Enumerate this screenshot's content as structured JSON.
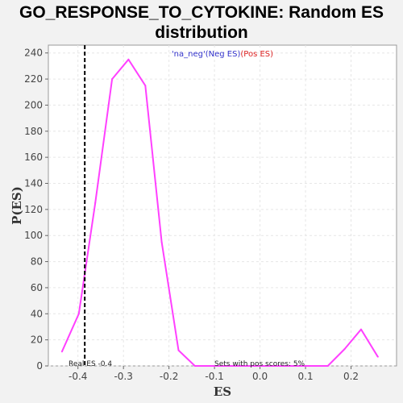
{
  "chart_data": {
    "type": "line",
    "title_line1": "GO_RESPONSE_TO_CYTOKINE: Random ES",
    "title_line2": "distribution",
    "xlabel": "ES",
    "ylabel": "P(ES)",
    "xlim": [
      -0.465,
      0.3
    ],
    "ylim": [
      0,
      246
    ],
    "x_ticks": [
      -0.4,
      -0.3,
      -0.2,
      -0.1,
      0.0,
      0.1,
      0.2
    ],
    "x_tick_labels": [
      "-0.4",
      "-0.3",
      "-0.2",
      "-0.1",
      "0.0",
      "0.1",
      "0.2"
    ],
    "y_ticks": [
      0,
      20,
      40,
      60,
      80,
      100,
      120,
      140,
      160,
      180,
      200,
      220,
      240
    ],
    "grid": true,
    "series": [
      {
        "color": "#ff40ff",
        "x": [
          -0.435,
          -0.398,
          -0.362,
          -0.325,
          -0.289,
          -0.252,
          -0.216,
          -0.179,
          -0.143,
          -0.106,
          -0.07,
          -0.033,
          0.003,
          0.04,
          0.076,
          0.113,
          0.149,
          0.186,
          0.222,
          0.259
        ],
        "y": [
          11,
          40,
          125,
          220,
          235,
          215,
          95,
          12,
          0,
          0,
          0,
          0,
          0,
          0,
          0,
          0,
          0,
          13,
          28,
          7
        ]
      }
    ],
    "real_es": -0.385,
    "annotations": {
      "real_es_label": "Real ES -0.4",
      "pos_scores_label": "Sets with pos scores: 5%"
    },
    "legend": {
      "na_neg": "'na_neg'",
      "neg_es": "(Neg ES)",
      "pos_es": "(Pos ES)",
      "na_color": "#3333cc",
      "pos_color": "#dd2222"
    }
  }
}
